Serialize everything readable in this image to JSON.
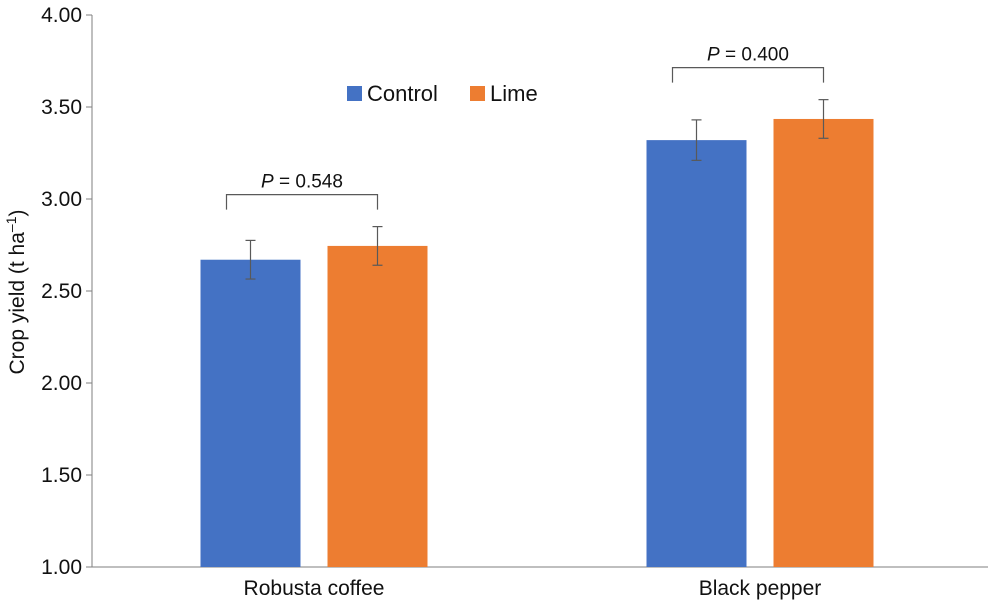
{
  "chart_data": {
    "type": "bar",
    "categories": [
      "Robusta coffee",
      "Black pepper"
    ],
    "series": [
      {
        "name": "Control",
        "color": "#4472C4",
        "values": [
          2.67,
          3.32
        ],
        "errors": [
          0.105,
          0.11
        ]
      },
      {
        "name": "Lime",
        "color": "#ED7D31",
        "values": [
          2.745,
          3.435
        ],
        "errors": [
          0.105,
          0.105
        ]
      }
    ],
    "ylabel_main": "Crop yield (t ha",
    "ylabel_sup": "–1",
    "ylabel_close": ")",
    "ylim": [
      1.0,
      4.0
    ],
    "yticks": [
      "1.00",
      "1.50",
      "2.00",
      "2.50",
      "3.00",
      "3.50",
      "4.00"
    ],
    "legend_position": "top-center",
    "grid": false,
    "annotations": [
      {
        "category_index": 0,
        "p_symbol": "P",
        "p_text": " = 0.548"
      },
      {
        "category_index": 1,
        "p_symbol": "P",
        "p_text": " = 0.400"
      }
    ]
  }
}
